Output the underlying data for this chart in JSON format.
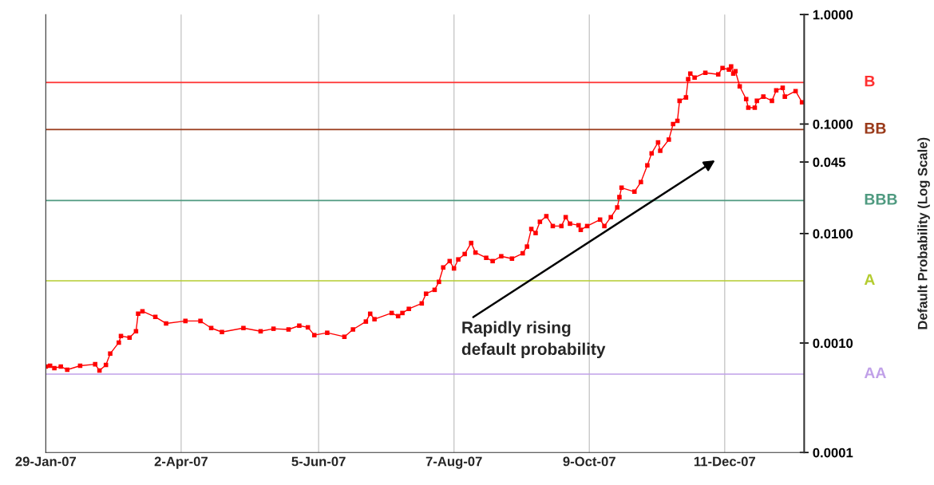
{
  "chart_data": {
    "type": "line",
    "ylabel": "Default Probability (Log Scale)",
    "log": "y",
    "grid": "x",
    "marker": "square",
    "line_style": "solid",
    "xlim": [
      "2007-01-29",
      "2008-01-17"
    ],
    "xticks": [
      {
        "value": "2007-01-29",
        "label": "29-Jan-07"
      },
      {
        "value": "2007-04-02",
        "label": "2-Apr-07"
      },
      {
        "value": "2007-06-05",
        "label": "5-Jun-07"
      },
      {
        "value": "2007-08-07",
        "label": "7-Aug-07"
      },
      {
        "value": "2007-10-09",
        "label": "9-Oct-07"
      },
      {
        "value": "2007-12-11",
        "label": "11-Dec-07"
      }
    ],
    "ylim": [
      0.0001,
      1.0
    ],
    "yticks": [
      {
        "value": 0.0001,
        "label": "0.0001"
      },
      {
        "value": 0.001,
        "label": "0.0010"
      },
      {
        "value": 0.01,
        "label": "0.0100"
      },
      {
        "value": 0.045,
        "label": "0.045"
      },
      {
        "value": 0.1,
        "label": "0.1000"
      },
      {
        "value": 1.0,
        "label": "1.0000"
      }
    ],
    "x": [
      "2007-01-29",
      "2007-01-31",
      "2007-02-02",
      "2007-02-05",
      "2007-02-08",
      "2007-02-14",
      "2007-02-21",
      "2007-02-23",
      "2007-02-26",
      "2007-02-28",
      "2007-03-04",
      "2007-03-05",
      "2007-03-09",
      "2007-03-12",
      "2007-03-13",
      "2007-03-15",
      "2007-03-21",
      "2007-03-26",
      "2007-04-04",
      "2007-04-11",
      "2007-04-16",
      "2007-04-21",
      "2007-05-01",
      "2007-05-09",
      "2007-05-15",
      "2007-05-22",
      "2007-05-27",
      "2007-05-31",
      "2007-06-03",
      "2007-06-09",
      "2007-06-17",
      "2007-06-21",
      "2007-06-27",
      "2007-06-29",
      "2007-07-01",
      "2007-07-09",
      "2007-07-12",
      "2007-07-14",
      "2007-07-17",
      "2007-07-23",
      "2007-07-25",
      "2007-07-29",
      "2007-07-31",
      "2007-08-02",
      "2007-08-05",
      "2007-08-07",
      "2007-08-09",
      "2007-08-12",
      "2007-08-15",
      "2007-08-17",
      "2007-08-22",
      "2007-08-25",
      "2007-08-29",
      "2007-09-03",
      "2007-09-08",
      "2007-09-10",
      "2007-09-12",
      "2007-09-14",
      "2007-09-16",
      "2007-09-19",
      "2007-09-22",
      "2007-09-26",
      "2007-09-28",
      "2007-09-30",
      "2007-10-04",
      "2007-10-05",
      "2007-10-08",
      "2007-10-14",
      "2007-10-16",
      "2007-10-19",
      "2007-10-22",
      "2007-10-23",
      "2007-10-24",
      "2007-10-30",
      "2007-11-02",
      "2007-11-05",
      "2007-11-07",
      "2007-11-10",
      "2007-11-11",
      "2007-11-15",
      "2007-11-17",
      "2007-11-19",
      "2007-11-20",
      "2007-11-23",
      "2007-11-24",
      "2007-11-25",
      "2007-11-27",
      "2007-12-02",
      "2007-12-08",
      "2007-12-10",
      "2007-12-13",
      "2007-12-14",
      "2007-12-15",
      "2007-12-16",
      "2007-12-18",
      "2007-12-21",
      "2007-12-22",
      "2007-12-25",
      "2007-12-26",
      "2007-12-29",
      "2008-01-02",
      "2008-01-04",
      "2008-01-07",
      "2008-01-08",
      "2008-01-13",
      "2008-01-16"
    ],
    "series": [
      {
        "color": "#ff0000",
        "values": [
          0.00061,
          0.00062,
          0.00059,
          0.00061,
          0.00057,
          0.00062,
          0.00064,
          0.00056,
          0.00063,
          0.0008,
          0.00101,
          0.00116,
          0.00112,
          0.00128,
          0.00185,
          0.00195,
          0.00173,
          0.00151,
          0.00159,
          0.00159,
          0.00137,
          0.00126,
          0.00137,
          0.00128,
          0.00135,
          0.00133,
          0.00144,
          0.00139,
          0.00118,
          0.00124,
          0.00114,
          0.00133,
          0.00157,
          0.00185,
          0.00165,
          0.00188,
          0.00176,
          0.00188,
          0.00205,
          0.0023,
          0.00282,
          0.00306,
          0.00362,
          0.0049,
          0.0056,
          0.0048,
          0.0058,
          0.0065,
          0.0082,
          0.0067,
          0.006,
          0.0056,
          0.0062,
          0.0059,
          0.0066,
          0.0076,
          0.011,
          0.0101,
          0.0128,
          0.0144,
          0.0117,
          0.0117,
          0.0141,
          0.0123,
          0.0119,
          0.0108,
          0.0117,
          0.0134,
          0.0117,
          0.0141,
          0.0173,
          0.0215,
          0.0262,
          0.0241,
          0.0295,
          0.042,
          0.054,
          0.068,
          0.057,
          0.072,
          0.1,
          0.107,
          0.163,
          0.175,
          0.257,
          0.289,
          0.266,
          0.294,
          0.284,
          0.325,
          0.314,
          0.336,
          0.289,
          0.304,
          0.221,
          0.169,
          0.141,
          0.141,
          0.163,
          0.178,
          0.163,
          0.203,
          0.214,
          0.178,
          0.2,
          0.158
        ]
      }
    ],
    "ref_lines": [
      {
        "axis": "y",
        "value": 0.24,
        "label": "B",
        "color": "#ff3030"
      },
      {
        "axis": "y",
        "value": 0.089,
        "label": "BB",
        "color": "#9a3a1a"
      },
      {
        "axis": "y",
        "value": 0.02,
        "label": "BBB",
        "color": "#4f9a80"
      },
      {
        "axis": "y",
        "value": 0.0037,
        "label": "A",
        "color": "#b4cc30"
      },
      {
        "axis": "y",
        "value": 0.00052,
        "label": "AA",
        "color": "#c0a0e8"
      }
    ],
    "annotations": [
      "Rapidly rising\ndefault probability"
    ]
  }
}
